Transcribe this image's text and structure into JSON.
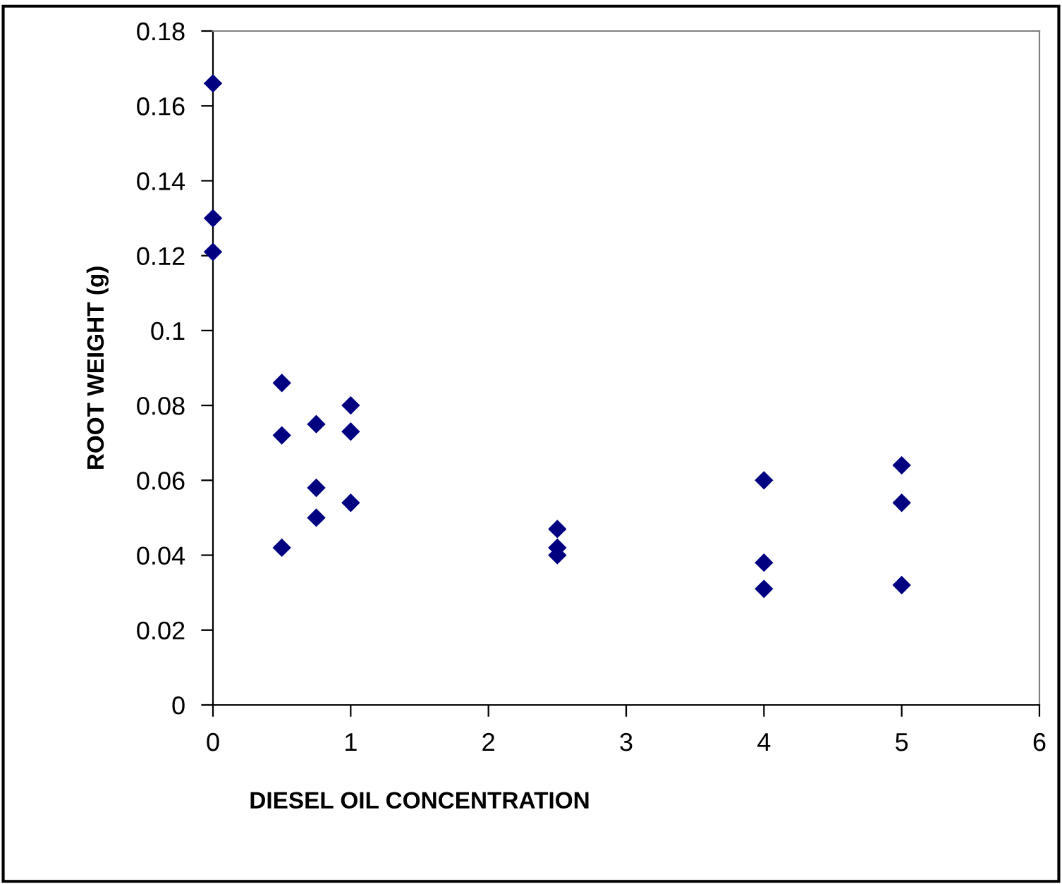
{
  "chart_data": {
    "type": "scatter",
    "xlabel": "DIESEL OIL CONCENTRATION",
    "ylabel": "ROOT WEIGHT (g)",
    "x": [
      0,
      0,
      0,
      0.5,
      0.5,
      0.5,
      0.75,
      0.75,
      0.75,
      1,
      1,
      1,
      2.5,
      2.5,
      2.5,
      4,
      4,
      4,
      5,
      5,
      5
    ],
    "values": [
      0.166,
      0.13,
      0.121,
      0.086,
      0.072,
      0.042,
      0.075,
      0.058,
      0.05,
      0.08,
      0.073,
      0.054,
      0.047,
      0.042,
      0.04,
      0.06,
      0.038,
      0.031,
      0.064,
      0.054,
      0.032
    ],
    "color": "#000080",
    "marker": "diamond",
    "grid": false,
    "legend": false,
    "xlim": [
      0,
      6
    ],
    "xticks": [
      0,
      1,
      2,
      3,
      4,
      5,
      6
    ],
    "ylim": [
      0,
      0.18
    ],
    "yticks": [
      0,
      0.02,
      0.04,
      0.06,
      0.08,
      0.1,
      0.12,
      0.14,
      0.16,
      0.18
    ]
  }
}
